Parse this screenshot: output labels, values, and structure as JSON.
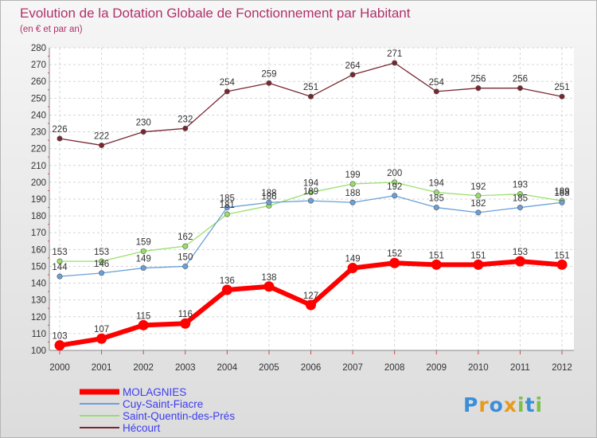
{
  "chart_data": {
    "type": "line",
    "title": "Evolution de la Dotation Globale de Fonctionnement par Habitant",
    "subtitle": "(en € et par an)",
    "x": [
      "2000",
      "2001",
      "2002",
      "2003",
      "2004",
      "2005",
      "2006",
      "2007",
      "2008",
      "2009",
      "2010",
      "2011",
      "2012"
    ],
    "ylim": [
      100,
      280
    ],
    "yticks": [
      100,
      110,
      120,
      130,
      140,
      150,
      160,
      170,
      180,
      190,
      200,
      210,
      220,
      230,
      240,
      250,
      260,
      270,
      280
    ],
    "grid": true,
    "series": [
      {
        "name": "MOLAGNIES",
        "values": [
          103,
          107,
          115,
          116,
          136,
          138,
          127,
          149,
          152,
          151,
          151,
          153,
          151
        ],
        "color": "#ff0000",
        "legend_color": "#ff0000"
      },
      {
        "name": "Cuy-Saint-Fiacre",
        "values": [
          144,
          146,
          149,
          150,
          185,
          188,
          189,
          188,
          192,
          185,
          182,
          185,
          188
        ],
        "color": "#6aa0d8",
        "legend_color": "#6aa0d8"
      },
      {
        "name": "Saint-Quentin-des-Prés",
        "values": [
          153,
          153,
          159,
          162,
          181,
          186,
          194,
          199,
          200,
          194,
          192,
          193,
          189
        ],
        "color": "#99e06a",
        "legend_color": "#99e06a"
      },
      {
        "name": "Hécourt",
        "values": [
          226,
          222,
          230,
          232,
          254,
          259,
          251,
          264,
          271,
          254,
          256,
          256,
          251
        ],
        "color": "#7a2630",
        "legend_color": "#7a2630"
      }
    ],
    "legend_position": "bottom-left",
    "legend_text_color": "#3c3cf0",
    "title_color": "#b0306a"
  },
  "logo": {
    "text": "Proxiti"
  }
}
